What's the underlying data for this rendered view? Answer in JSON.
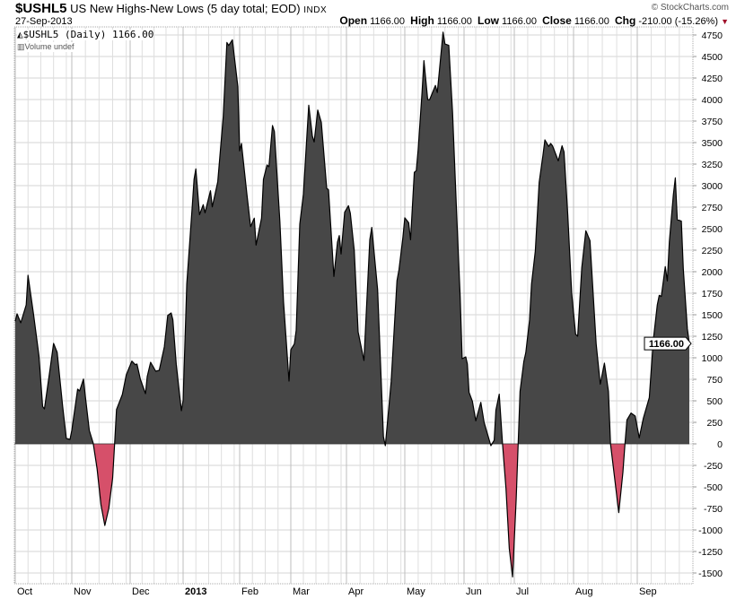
{
  "header": {
    "symbol": "$USHL5",
    "name": "US New Highs-New Lows (5 day total; EOD)",
    "exchange": "INDX",
    "date": "27-Sep-2013",
    "copyright": "© StockCharts.com",
    "open_label": "Open",
    "open": "1166.00",
    "high_label": "High",
    "high": "1166.00",
    "low_label": "Low",
    "low": "1166.00",
    "close_label": "Close",
    "close": "1166.00",
    "chg_label": "Chg",
    "chg": "-210.00 (-15.26%)",
    "chg_icon": "down-triangle-icon"
  },
  "legend": {
    "series": "$USHL5 (Daily) 1166.00",
    "volume": "Volume undef"
  },
  "chart_data": {
    "type": "area",
    "ylim": [
      -1500,
      4750
    ],
    "y_ticks": [
      "4750",
      "4500",
      "4250",
      "4000",
      "3750",
      "3500",
      "3250",
      "3000",
      "2750",
      "2500",
      "2250",
      "2000",
      "1750",
      "1500",
      "1250",
      "1000",
      "750",
      "500",
      "250",
      "0",
      "-250",
      "-500",
      "-750",
      "-1000",
      "-1250",
      "-1500"
    ],
    "x_ticks": [
      "Oct",
      "Nov",
      "Dec",
      "2013",
      "Feb",
      "Mar",
      "Apr",
      "May",
      "Jun",
      "Jul",
      "Aug",
      "Sep"
    ],
    "last_value_label": "1166.00",
    "grid": true,
    "colors": {
      "positive": "#474747",
      "negative": "#d6506a",
      "line": "#000000",
      "grid": "#d4d4d4"
    },
    "points": [
      [
        "2012-10-01",
        1424
      ],
      [
        "2012-10-02",
        1510
      ],
      [
        "2012-10-04",
        1406
      ],
      [
        "2012-10-07",
        1615
      ],
      [
        "2012-10-08",
        1958
      ],
      [
        "2012-10-11",
        1510
      ],
      [
        "2012-10-14",
        1024
      ],
      [
        "2012-10-16",
        434
      ],
      [
        "2012-10-17",
        406
      ],
      [
        "2012-10-20",
        854
      ],
      [
        "2012-10-22",
        1167
      ],
      [
        "2012-10-24",
        1062
      ],
      [
        "2012-10-27",
        437
      ],
      [
        "2012-10-29",
        63
      ],
      [
        "2012-10-31",
        52
      ],
      [
        "2012-11-01",
        156
      ],
      [
        "2012-11-04",
        635
      ],
      [
        "2012-11-05",
        615
      ],
      [
        "2012-11-07",
        753
      ],
      [
        "2012-11-08",
        542
      ],
      [
        "2012-11-10",
        156
      ],
      [
        "2012-11-12",
        10
      ],
      [
        "2012-11-14",
        -292
      ],
      [
        "2012-11-16",
        -708
      ],
      [
        "2012-11-18",
        -948
      ],
      [
        "2012-11-20",
        -750
      ],
      [
        "2012-11-22",
        -396
      ],
      [
        "2012-11-23",
        0
      ],
      [
        "2012-11-24",
        399
      ],
      [
        "2012-11-27",
        573
      ],
      [
        "2012-11-29",
        802
      ],
      [
        "2012-12-02",
        961
      ],
      [
        "2012-12-04",
        920
      ],
      [
        "2012-12-05",
        927
      ],
      [
        "2012-12-07",
        750
      ],
      [
        "2012-12-10",
        583
      ],
      [
        "2012-12-11",
        781
      ],
      [
        "2012-12-13",
        948
      ],
      [
        "2012-12-16",
        844
      ],
      [
        "2012-12-18",
        854
      ],
      [
        "2012-12-21",
        1128
      ],
      [
        "2012-12-23",
        1493
      ],
      [
        "2012-12-25",
        1521
      ],
      [
        "2012-12-26",
        1441
      ],
      [
        "2012-12-28",
        920
      ],
      [
        "2012-12-31",
        385
      ],
      [
        "2013-01-01",
        503
      ],
      [
        "2013-01-03",
        1857
      ],
      [
        "2013-01-06",
        2760
      ],
      [
        "2013-01-07",
        3073
      ],
      [
        "2013-01-08",
        3194
      ],
      [
        "2013-01-10",
        2663
      ],
      [
        "2013-01-12",
        2778
      ],
      [
        "2013-01-13",
        2684
      ],
      [
        "2013-01-16",
        2941
      ],
      [
        "2013-01-17",
        2753
      ],
      [
        "2013-01-20",
        3045
      ],
      [
        "2013-01-23",
        3802
      ],
      [
        "2013-01-25",
        4663
      ],
      [
        "2013-01-26",
        4628
      ],
      [
        "2013-01-28",
        4694
      ],
      [
        "2013-01-31",
        4149
      ],
      [
        "2013-02-01",
        3403
      ],
      [
        "2013-02-02",
        3490
      ],
      [
        "2013-02-05",
        2899
      ],
      [
        "2013-02-07",
        2524
      ],
      [
        "2013-02-09",
        2622
      ],
      [
        "2013-02-10",
        2309
      ],
      [
        "2013-02-13",
        2622
      ],
      [
        "2013-02-14",
        3073
      ],
      [
        "2013-02-16",
        3240
      ],
      [
        "2013-02-17",
        3219
      ],
      [
        "2013-02-19",
        3698
      ],
      [
        "2013-02-20",
        3628
      ],
      [
        "2013-02-23",
        2587
      ],
      [
        "2013-02-25",
        1649
      ],
      [
        "2013-02-28",
        729
      ],
      [
        "2013-03-01",
        1094
      ],
      [
        "2013-03-03",
        1163
      ],
      [
        "2013-03-04",
        1320
      ],
      [
        "2013-03-06",
        2552
      ],
      [
        "2013-03-08",
        2899
      ],
      [
        "2013-03-10",
        3594
      ],
      [
        "2013-03-11",
        3934
      ],
      [
        "2013-03-13",
        3576
      ],
      [
        "2013-03-14",
        3507
      ],
      [
        "2013-03-16",
        3878
      ],
      [
        "2013-03-18",
        3733
      ],
      [
        "2013-03-21",
        2969
      ],
      [
        "2013-03-22",
        2951
      ],
      [
        "2013-03-25",
        1945
      ],
      [
        "2013-03-27",
        2344
      ],
      [
        "2013-03-28",
        2420
      ],
      [
        "2013-03-29",
        2205
      ],
      [
        "2013-03-31",
        2691
      ],
      [
        "2013-04-02",
        2767
      ],
      [
        "2013-04-03",
        2679
      ],
      [
        "2013-04-05",
        2247
      ],
      [
        "2013-04-07",
        1299
      ],
      [
        "2013-04-10",
        969
      ],
      [
        "2013-04-13",
        2371
      ],
      [
        "2013-04-14",
        2515
      ],
      [
        "2013-04-17",
        1794
      ],
      [
        "2013-04-20",
        83
      ],
      [
        "2013-04-21",
        -21
      ],
      [
        "2013-04-24",
        722
      ],
      [
        "2013-04-27",
        1896
      ],
      [
        "2013-04-28",
        2021
      ],
      [
        "2013-04-30",
        2391
      ],
      [
        "2013-05-01",
        2626
      ],
      [
        "2013-05-03",
        2569
      ],
      [
        "2013-05-04",
        2371
      ],
      [
        "2013-05-06",
        3154
      ],
      [
        "2013-05-07",
        3174
      ],
      [
        "2013-05-08",
        3422
      ],
      [
        "2013-05-10",
        4081
      ],
      [
        "2013-05-11",
        4452
      ],
      [
        "2013-05-13",
        3999
      ],
      [
        "2013-05-14",
        3999
      ],
      [
        "2013-05-17",
        4164
      ],
      [
        "2013-05-18",
        4081
      ],
      [
        "2013-05-19",
        4308
      ],
      [
        "2013-05-21",
        4782
      ],
      [
        "2013-05-22",
        4646
      ],
      [
        "2013-05-24",
        4629
      ],
      [
        "2013-05-26",
        3854
      ],
      [
        "2013-05-28",
        2742
      ],
      [
        "2013-05-30",
        1710
      ],
      [
        "2013-05-31",
        990
      ],
      [
        "2013-06-02",
        1010
      ],
      [
        "2013-06-03",
        928
      ],
      [
        "2013-06-04",
        598
      ],
      [
        "2013-06-06",
        495
      ],
      [
        "2013-06-08",
        268
      ],
      [
        "2013-06-11",
        482
      ],
      [
        "2013-06-13",
        248
      ],
      [
        "2013-06-17",
        -21
      ],
      [
        "2013-06-19",
        42
      ],
      [
        "2013-06-20",
        392
      ],
      [
        "2013-06-22",
        577
      ],
      [
        "2013-06-24",
        0
      ],
      [
        "2013-06-26",
        -514
      ],
      [
        "2013-06-28",
        -1216
      ],
      [
        "2013-06-30",
        -1546
      ],
      [
        "2013-07-02",
        -639
      ],
      [
        "2013-07-03",
        0
      ],
      [
        "2013-07-04",
        608
      ],
      [
        "2013-07-06",
        955
      ],
      [
        "2013-07-07",
        1059
      ],
      [
        "2013-07-09",
        1441
      ],
      [
        "2013-07-10",
        1857
      ],
      [
        "2013-07-12",
        2240
      ],
      [
        "2013-07-14",
        3038
      ],
      [
        "2013-07-16",
        3351
      ],
      [
        "2013-07-17",
        3531
      ],
      [
        "2013-07-19",
        3455
      ],
      [
        "2013-07-20",
        3490
      ],
      [
        "2013-07-21",
        3462
      ],
      [
        "2013-07-24",
        3288
      ],
      [
        "2013-07-26",
        3462
      ],
      [
        "2013-07-27",
        3392
      ],
      [
        "2013-07-29",
        2656
      ],
      [
        "2013-07-31",
        1753
      ],
      [
        "2013-08-02",
        1274
      ],
      [
        "2013-08-03",
        1250
      ],
      [
        "2013-08-05",
        2049
      ],
      [
        "2013-08-07",
        2476
      ],
      [
        "2013-08-09",
        2361
      ],
      [
        "2013-08-10",
        1962
      ],
      [
        "2013-08-12",
        1163
      ],
      [
        "2013-08-14",
        694
      ],
      [
        "2013-08-16",
        938
      ],
      [
        "2013-08-18",
        608
      ],
      [
        "2013-08-19",
        0
      ],
      [
        "2013-08-21",
        -399
      ],
      [
        "2013-08-23",
        -799
      ],
      [
        "2013-08-25",
        -330
      ],
      [
        "2013-08-26",
        0
      ],
      [
        "2013-08-27",
        278
      ],
      [
        "2013-08-29",
        358
      ],
      [
        "2013-08-31",
        323
      ],
      [
        "2013-09-02",
        70
      ],
      [
        "2013-09-04",
        295
      ],
      [
        "2013-09-07",
        538
      ],
      [
        "2013-09-09",
        1198
      ],
      [
        "2013-09-11",
        1615
      ],
      [
        "2013-09-12",
        1726
      ],
      [
        "2013-09-13",
        1712
      ],
      [
        "2013-09-15",
        2059
      ],
      [
        "2013-09-16",
        1893
      ],
      [
        "2013-09-17",
        2344
      ],
      [
        "2013-09-19",
        2893
      ],
      [
        "2013-09-20",
        3090
      ],
      [
        "2013-09-21",
        2604
      ],
      [
        "2013-09-23",
        2587
      ],
      [
        "2013-09-24",
        2031
      ],
      [
        "2013-09-26",
        1337
      ],
      [
        "2013-09-27",
        1166
      ]
    ]
  }
}
